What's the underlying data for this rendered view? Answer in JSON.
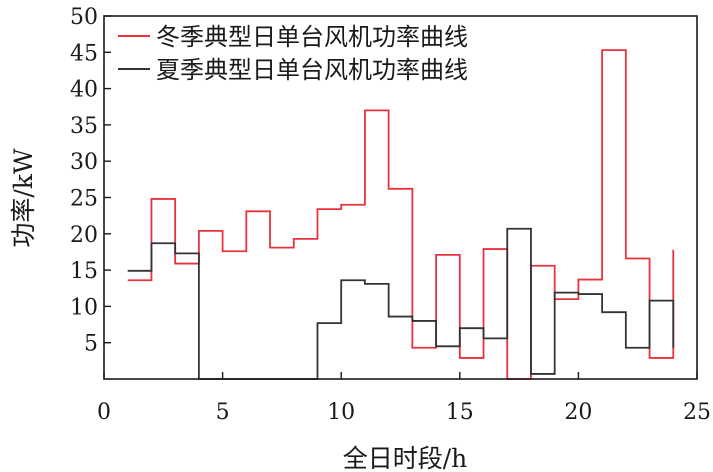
{
  "chart_data": {
    "type": "line",
    "step": "post",
    "xlabel": "全日时段/h",
    "ylabel": "功率/kW",
    "xlim": [
      0,
      25
    ],
    "ylim": [
      0,
      50
    ],
    "xticks": [
      0,
      5,
      10,
      15,
      20,
      25
    ],
    "xtick_labels": [
      "0",
      "5",
      "10",
      "15",
      "20",
      "25"
    ],
    "yticks": [
      5,
      10,
      15,
      20,
      25,
      30,
      35,
      40,
      45,
      50
    ],
    "ytick_labels": [
      "5",
      "10",
      "15",
      "20",
      "25",
      "30",
      "35",
      "40",
      "45",
      "50"
    ],
    "grid": false,
    "legend_position": "top-left",
    "x": [
      1,
      2,
      3,
      4,
      5,
      6,
      7,
      8,
      9,
      10,
      11,
      12,
      13,
      14,
      15,
      16,
      17,
      18,
      19,
      20,
      21,
      22,
      23,
      24
    ],
    "series": [
      {
        "name": "冬季典型日单台风机功率曲线",
        "color": "#e8333c",
        "values": [
          13.6,
          24.8,
          15.9,
          20.4,
          17.6,
          23.1,
          18.1,
          19.3,
          23.4,
          24.0,
          37.0,
          26.2,
          4.3,
          17.1,
          2.9,
          17.9,
          0.0,
          15.6,
          11.0,
          13.7,
          45.3,
          16.6,
          2.9,
          17.8
        ]
      },
      {
        "name": "夏季典型日单台风机功率曲线",
        "color": "#333333",
        "values": [
          14.9,
          18.7,
          17.3,
          0.0,
          0.0,
          0.0,
          0.0,
          0.0,
          7.7,
          13.6,
          13.1,
          8.6,
          8.0,
          4.5,
          7.0,
          5.6,
          20.7,
          0.7,
          11.9,
          11.7,
          9.2,
          4.3,
          10.8,
          4.3
        ]
      }
    ]
  }
}
